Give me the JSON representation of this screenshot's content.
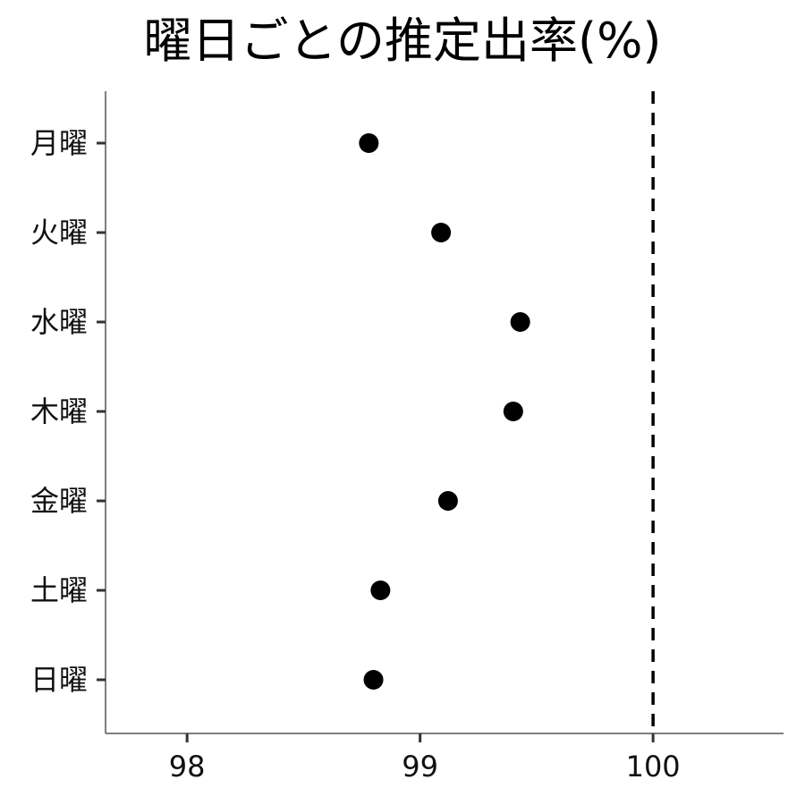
{
  "chart_data": {
    "type": "scatter",
    "title": "曜日ごとの推定出率(%)",
    "xlabel": "",
    "ylabel": "",
    "categories": [
      "月曜",
      "火曜",
      "水曜",
      "木曜",
      "金曜",
      "土曜",
      "日曜"
    ],
    "values": [
      98.78,
      99.09,
      99.43,
      99.4,
      99.12,
      98.83,
      98.8
    ],
    "xlim": [
      97.65,
      100.56
    ],
    "xticks": [
      98,
      99,
      100
    ],
    "xtick_labels": [
      "98",
      "99",
      "100"
    ],
    "reference_line": {
      "x": 100,
      "style": "dashed"
    },
    "grid": false,
    "legend": "none",
    "colors": {
      "point": "#000000",
      "axis": "#555555",
      "reference": "#000000"
    }
  }
}
